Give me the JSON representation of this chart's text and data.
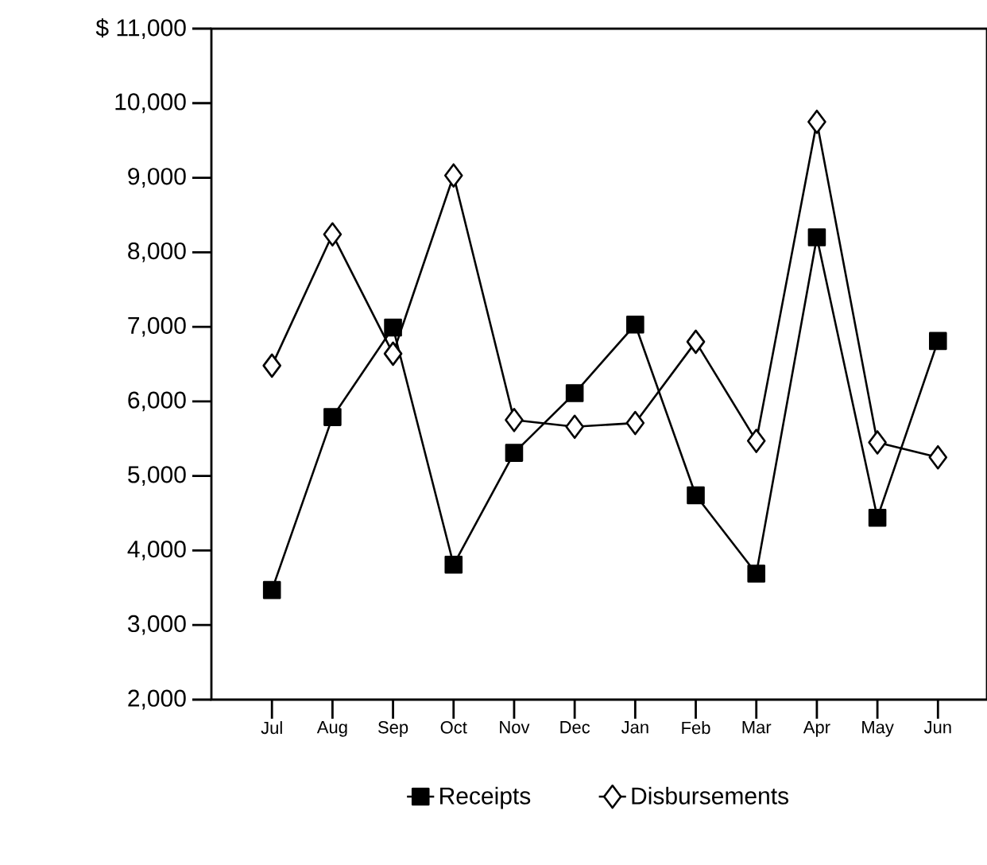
{
  "chart_data": {
    "type": "line",
    "categories": [
      "Jul",
      "Aug",
      "Sep",
      "Oct",
      "Nov",
      "Dec",
      "Jan",
      "Feb",
      "Mar",
      "Apr",
      "May",
      "Jun"
    ],
    "series": [
      {
        "name": "Receipts",
        "color": "#000000",
        "marker": "square",
        "values": [
          3470,
          5790,
          6990,
          3810,
          5310,
          6110,
          7030,
          4740,
          3690,
          8200,
          4440,
          6810
        ]
      },
      {
        "name": "Disbursements",
        "color": "#000000",
        "marker": "diamond",
        "values": [
          6480,
          8240,
          6640,
          9030,
          5750,
          5660,
          5710,
          6800,
          5470,
          9750,
          5450,
          5250
        ]
      }
    ],
    "ylim": [
      2000,
      11000
    ],
    "yticks": [
      {
        "value": 2000,
        "label": "2,000"
      },
      {
        "value": 3000,
        "label": "3,000"
      },
      {
        "value": 4000,
        "label": "4,000"
      },
      {
        "value": 5000,
        "label": "5,000"
      },
      {
        "value": 6000,
        "label": "6,000"
      },
      {
        "value": 7000,
        "label": "7,000"
      },
      {
        "value": 8000,
        "label": "8,000"
      },
      {
        "value": 9000,
        "label": "9,000"
      },
      {
        "value": 10000,
        "label": "10,000"
      },
      {
        "value": 11000,
        "label": "$ 11,000"
      }
    ],
    "grid": false,
    "legend": "bottom",
    "line_style": "solid"
  }
}
